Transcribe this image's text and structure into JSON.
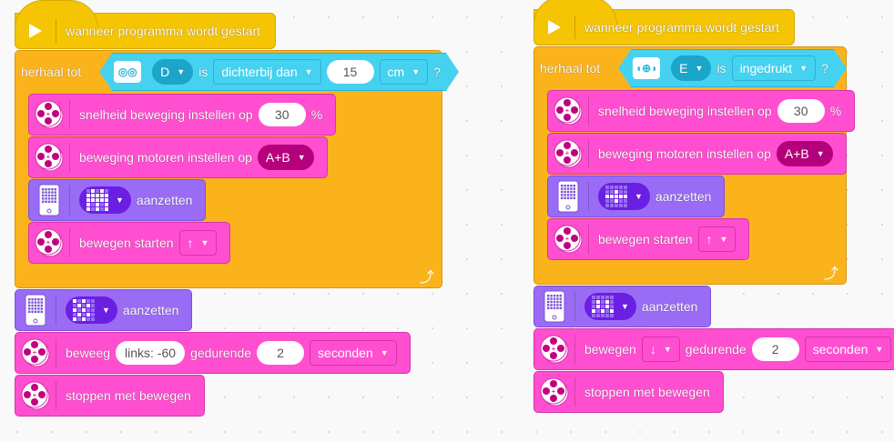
{
  "scripts": [
    {
      "hat": {
        "label": "wanneer programma wordt gestart",
        "icon": "play-icon"
      },
      "repeat": {
        "label": "herhaal tot",
        "loop_icon": "loop-arrow-icon",
        "condition": {
          "sensor_icon": "distance-sensor-icon",
          "port": "D",
          "is": "is",
          "comparison": "dichterbij dan",
          "value": "15",
          "unit": "cm",
          "question": "?"
        }
      },
      "inner": [
        {
          "type": "motor",
          "parts": [
            {
              "kind": "text",
              "value": "snelheid beweging instellen op"
            },
            {
              "kind": "input",
              "value": "30"
            },
            {
              "kind": "text",
              "value": "%"
            }
          ]
        },
        {
          "type": "motor",
          "parts": [
            {
              "kind": "text",
              "value": "beweging motoren instellen op"
            },
            {
              "kind": "round",
              "value": "A+B"
            }
          ]
        },
        {
          "type": "display",
          "parts": [
            {
              "kind": "matrix",
              "pattern": "0101011111111111010110101"
            },
            {
              "kind": "text",
              "value": "aanzetten"
            }
          ]
        },
        {
          "type": "motor",
          "parts": [
            {
              "kind": "text",
              "value": "bewegen starten"
            },
            {
              "kind": "dropdown",
              "value": "↑"
            }
          ]
        }
      ],
      "after": [
        {
          "type": "display",
          "parts": [
            {
              "kind": "matrix",
              "pattern": "1010001010101000101010100"
            },
            {
              "kind": "text",
              "value": "aanzetten"
            }
          ]
        },
        {
          "type": "motor",
          "parts": [
            {
              "kind": "text",
              "value": "beweeg"
            },
            {
              "kind": "input",
              "value": "links: -60"
            },
            {
              "kind": "text",
              "value": "gedurende"
            },
            {
              "kind": "input",
              "value": "2"
            },
            {
              "kind": "dropdown",
              "value": "seconden"
            }
          ]
        },
        {
          "type": "motor",
          "parts": [
            {
              "kind": "text",
              "value": "stoppen met bewegen"
            }
          ]
        }
      ]
    },
    {
      "hat": {
        "label": "wanneer programma wordt gestart",
        "icon": "play-icon"
      },
      "repeat": {
        "label": "herhaal tot",
        "loop_icon": "loop-arrow-icon",
        "condition": {
          "sensor_icon": "force-sensor-icon",
          "port": "E",
          "is": "is",
          "comparison": "ingedrukt",
          "question": "?"
        }
      },
      "inner": [
        {
          "type": "motor",
          "parts": [
            {
              "kind": "text",
              "value": "snelheid beweging instellen op"
            },
            {
              "kind": "input",
              "value": "30"
            },
            {
              "kind": "text",
              "value": "%"
            }
          ]
        },
        {
          "type": "motor",
          "parts": [
            {
              "kind": "text",
              "value": "beweging motoren instellen op"
            },
            {
              "kind": "round",
              "value": "A+B"
            }
          ]
        },
        {
          "type": "display",
          "parts": [
            {
              "kind": "matrix",
              "pattern": "0000000100111110010000000"
            },
            {
              "kind": "text",
              "value": "aanzetten"
            }
          ]
        },
        {
          "type": "motor",
          "parts": [
            {
              "kind": "text",
              "value": "bewegen starten"
            },
            {
              "kind": "dropdown",
              "value": "↑"
            }
          ]
        }
      ],
      "after": [
        {
          "type": "display",
          "parts": [
            {
              "kind": "matrix",
              "pattern": "0000001010010101010100000"
            },
            {
              "kind": "text",
              "value": "aanzetten"
            }
          ]
        },
        {
          "type": "motor",
          "parts": [
            {
              "kind": "text",
              "value": "bewegen"
            },
            {
              "kind": "dropdown",
              "value": "↓"
            },
            {
              "kind": "text",
              "value": "gedurende"
            },
            {
              "kind": "input",
              "value": "2"
            },
            {
              "kind": "dropdown",
              "value": "seconden"
            }
          ]
        },
        {
          "type": "motor",
          "parts": [
            {
              "kind": "text",
              "value": "stoppen met bewegen"
            }
          ]
        }
      ]
    }
  ],
  "colors": {
    "event": "#f5c402",
    "control": "#fbb31b",
    "sensor": "#45d1f0",
    "motor": "#ff4fd0",
    "display": "#9a6cf5"
  }
}
